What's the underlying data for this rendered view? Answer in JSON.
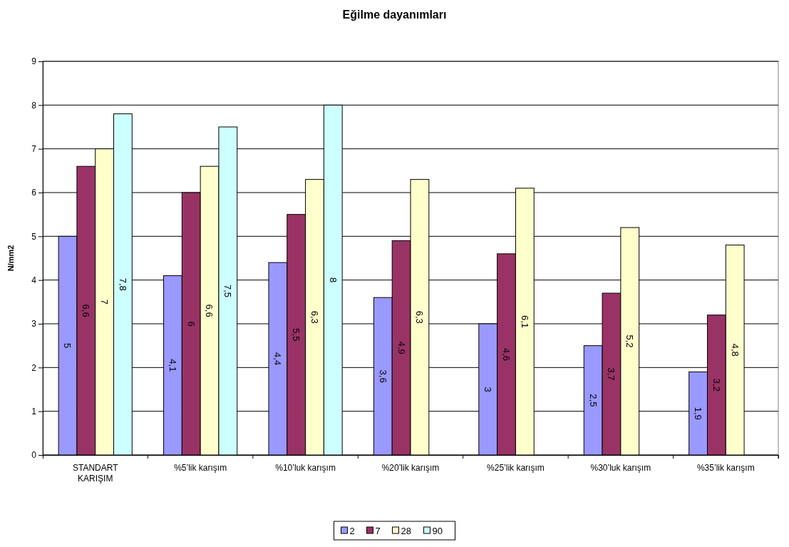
{
  "chart_data": {
    "type": "bar",
    "title": "Eğilme dayanımları",
    "ylabel": "N/mm2",
    "categories": [
      "STANDART KARIŞIM",
      "%5’lik karışım",
      "%10’luk karışım",
      "%20’lik karışım",
      "%25’lik karışım",
      "%30’luk karışım",
      "%35’lik karışım"
    ],
    "series": [
      {
        "name": "2",
        "color": "#9999ff",
        "values": [
          5,
          4.1,
          4.4,
          3.6,
          3,
          2.5,
          1.9
        ],
        "value_labels": [
          "5",
          "4,1",
          "4,4",
          "3,6",
          "3",
          "2,5",
          "1,9"
        ]
      },
      {
        "name": "7",
        "color": "#993366",
        "values": [
          6.6,
          6,
          5.5,
          4.9,
          4.6,
          3.7,
          3.2
        ],
        "value_labels": [
          "6,6",
          "6",
          "5,5",
          "4,9",
          "4,6",
          "3,7",
          "3,2"
        ]
      },
      {
        "name": "28",
        "color": "#ffffcc",
        "values": [
          7,
          6.6,
          6.3,
          6.3,
          6.1,
          5.2,
          4.8
        ],
        "value_labels": [
          "7",
          "6,6",
          "6,3",
          "6,3",
          "6,1",
          "5,2",
          "4,8"
        ]
      },
      {
        "name": "90",
        "color": "#ccffff",
        "values": [
          7.8,
          7.5,
          8,
          null,
          null,
          null,
          null
        ],
        "value_labels": [
          "7,8",
          "7,5",
          "8",
          null,
          null,
          null,
          null
        ]
      }
    ],
    "ylim": [
      0,
      9
    ],
    "yticks": [
      0,
      1,
      2,
      3,
      4,
      5,
      6,
      7,
      8,
      9
    ],
    "grid": "y",
    "legend": "bottom"
  }
}
